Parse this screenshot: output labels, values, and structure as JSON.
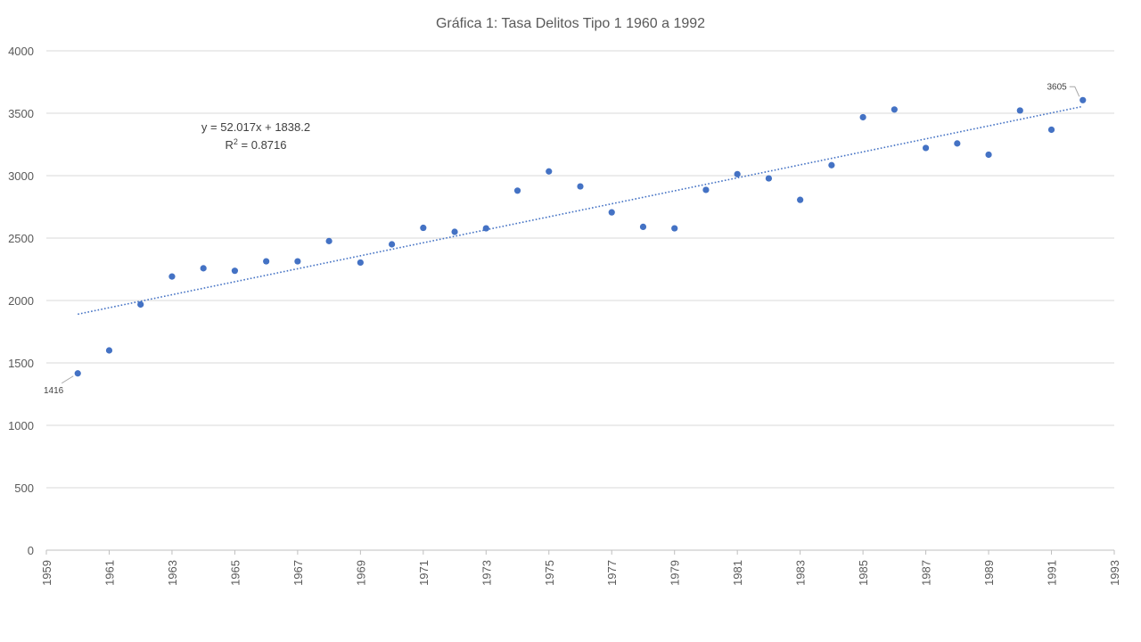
{
  "chart_data": {
    "type": "scatter",
    "title": "Gráfica 1: Tasa Delitos Tipo 1 1960 a 1992",
    "xlabel": "",
    "ylabel": "",
    "xlim": [
      1959,
      1993
    ],
    "ylim": [
      0,
      4000
    ],
    "x_ticks": [
      1959,
      1961,
      1963,
      1965,
      1967,
      1969,
      1971,
      1973,
      1975,
      1977,
      1979,
      1981,
      1983,
      1985,
      1987,
      1989,
      1991,
      1993
    ],
    "y_ticks": [
      0,
      500,
      1000,
      1500,
      2000,
      2500,
      3000,
      3500,
      4000
    ],
    "grid": true,
    "legend": "none",
    "colors": {
      "points": "#4472C4",
      "trendline": "#4472C4",
      "grid": "#D9D9D9",
      "text": "#595959"
    },
    "series": [
      {
        "x": [
          1960,
          1961,
          1962,
          1963,
          1964,
          1965,
          1966,
          1967,
          1968,
          1969,
          1970,
          1971,
          1972,
          1973,
          1974,
          1975,
          1976,
          1977,
          1978,
          1979,
          1980,
          1981,
          1982,
          1983,
          1984,
          1985,
          1986,
          1987,
          1988,
          1989,
          1990,
          1991,
          1992
        ],
        "y": [
          1416,
          1600,
          1968,
          2192,
          2258,
          2238,
          2314,
          2314,
          2476,
          2304,
          2450,
          2582,
          2550,
          2578,
          2880,
          3034,
          2914,
          2706,
          2590,
          2578,
          2886,
          3012,
          2978,
          2806,
          3084,
          3468,
          3530,
          3222,
          3258,
          3168,
          3522,
          3368,
          3605
        ]
      }
    ],
    "trendline": {
      "type": "linear",
      "slope": 52.017,
      "intercept": 1838.2,
      "equation": "y = 52.017x + 1838.2",
      "r2_prefix": "R",
      "r2_exp": "2",
      "r2_value": " = 0.8716"
    },
    "annotations": [
      {
        "x": 1960,
        "y": 1416,
        "text": "1416"
      },
      {
        "x": 1992,
        "y": 3605,
        "text": "3605"
      }
    ]
  }
}
